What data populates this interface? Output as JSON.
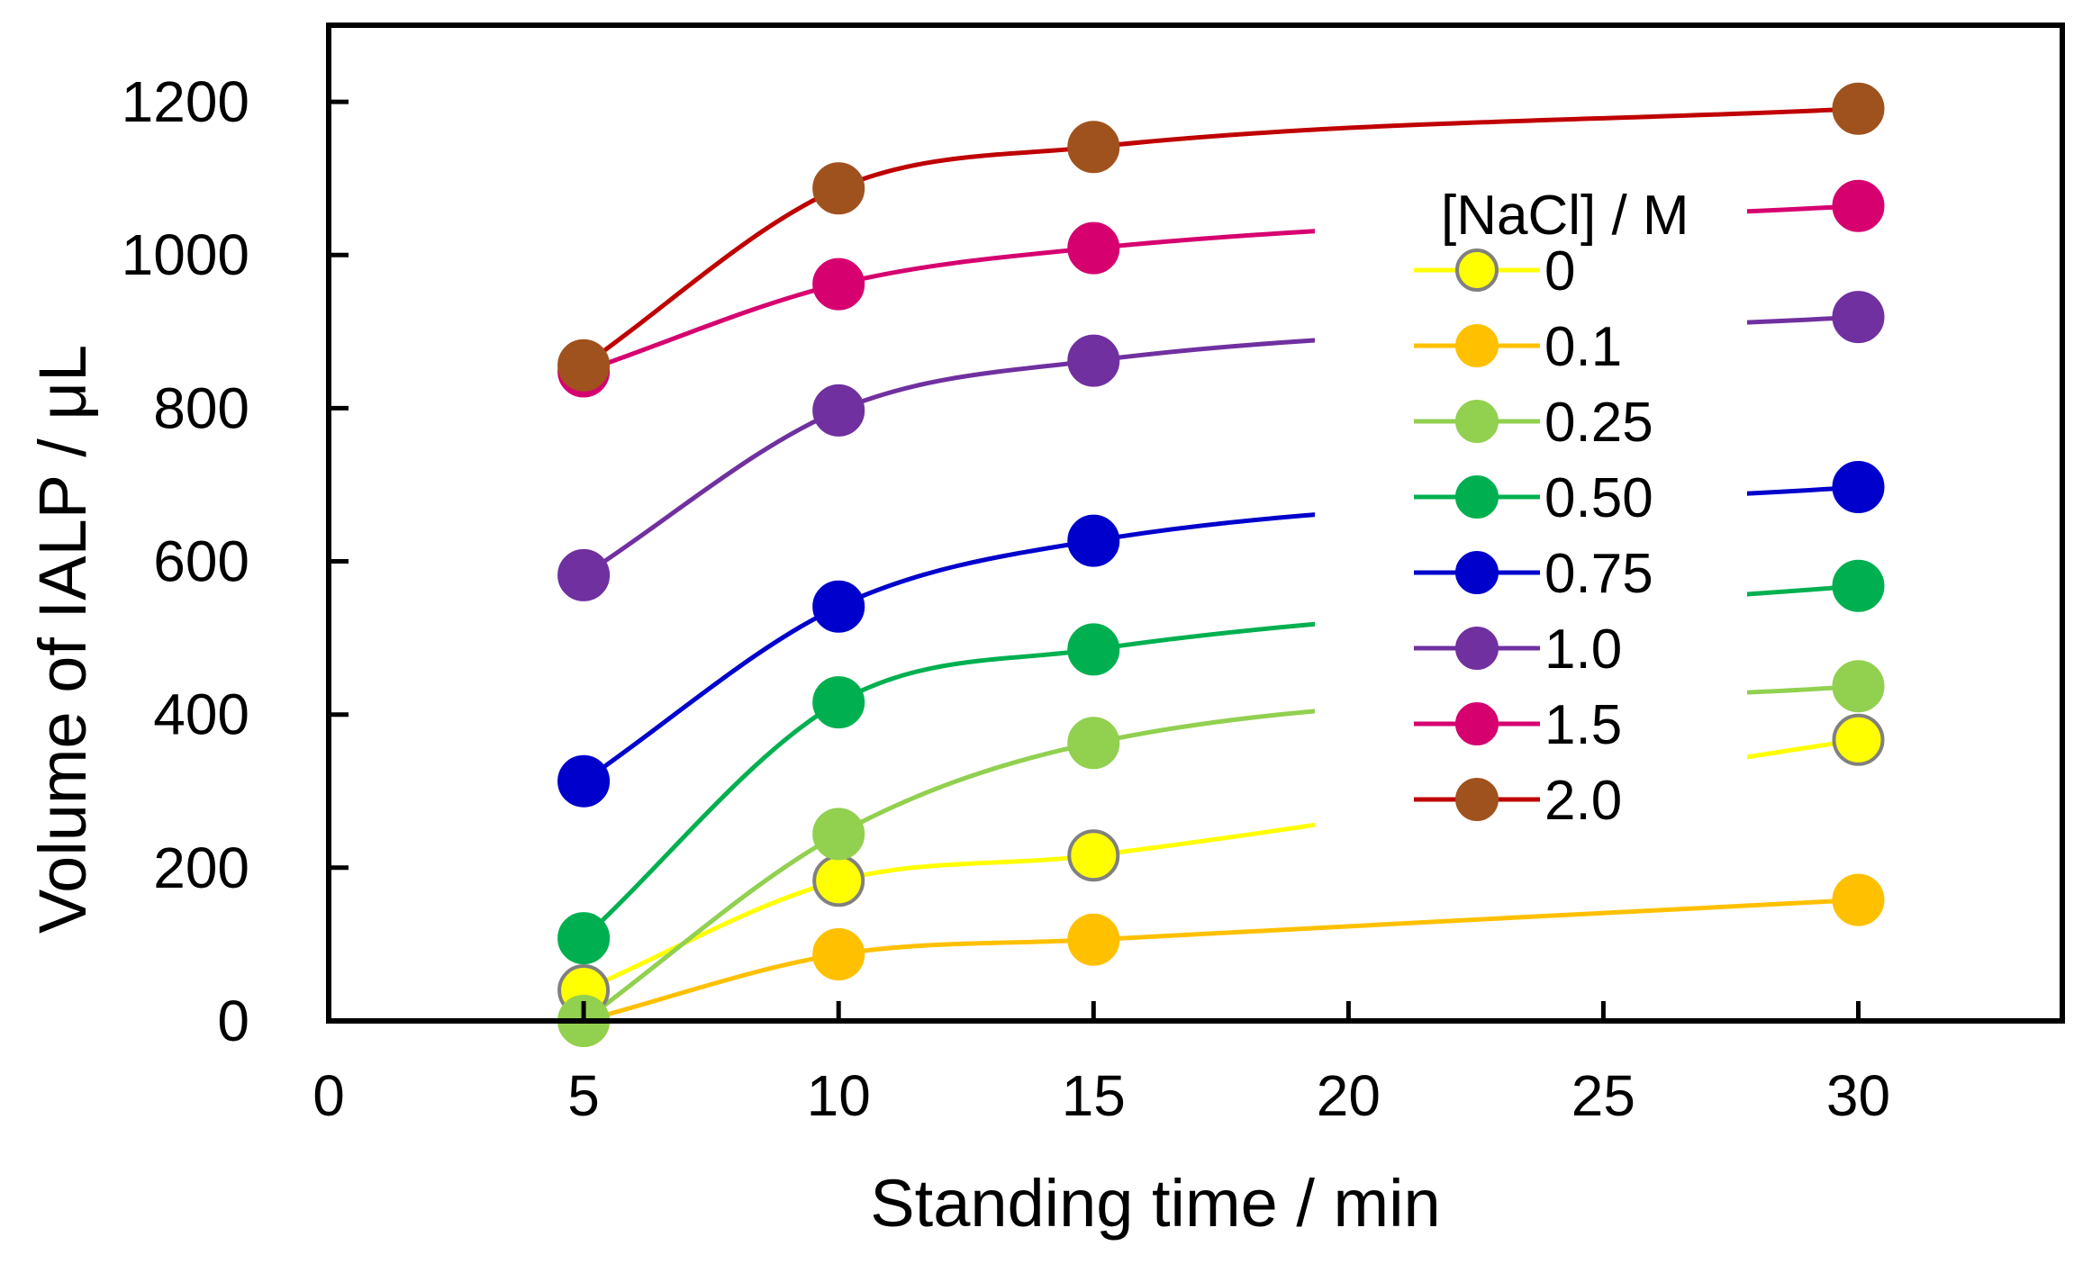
{
  "chart_data": {
    "type": "line",
    "title": "",
    "xlabel": "Standing time / min",
    "ylabel": "Volume of IALP / μL",
    "xlim": [
      0,
      34
    ],
    "ylim": [
      0,
      1300
    ],
    "xticks": [
      0,
      5,
      10,
      15,
      20,
      25,
      30
    ],
    "yticks": [
      0,
      200,
      400,
      600,
      800,
      1000,
      1200
    ],
    "x": [
      5,
      10,
      15,
      30
    ],
    "grid": false,
    "legend_position": "right",
    "legend_title": "[NaCl] / M",
    "series": [
      {
        "name": "0",
        "color": "#FFFF00",
        "line_color": "#FFFF00",
        "marker_edge": "#808080",
        "values": [
          40,
          183,
          216,
          367
        ]
      },
      {
        "name": "0.1",
        "color": "#FFC000",
        "line_color": "#FFC000",
        "marker_edge": "#FFC000",
        "values": [
          0,
          87,
          106,
          158
        ]
      },
      {
        "name": "0.25",
        "color": "#92D050",
        "line_color": "#92D050",
        "marker_edge": "#92D050",
        "values": [
          0,
          244,
          363,
          437
        ]
      },
      {
        "name": "0.50",
        "color": "#00B050",
        "line_color": "#00B050",
        "marker_edge": "#00B050",
        "values": [
          108,
          416,
          485,
          568
        ]
      },
      {
        "name": "0.75",
        "color": "#0000CC",
        "line_color": "#0000CC",
        "marker_edge": "#0000CC",
        "values": [
          313,
          541,
          627,
          697
        ]
      },
      {
        "name": "1.0",
        "color": "#7030A0",
        "line_color": "#7030A0",
        "marker_edge": "#7030A0",
        "values": [
          582,
          797,
          862,
          919
        ]
      },
      {
        "name": "1.5",
        "color": "#D6006F",
        "line_color": "#D6006F",
        "marker_edge": "#D6006F",
        "values": [
          848,
          962,
          1009,
          1064
        ]
      },
      {
        "name": "2.0",
        "color": "#A0521E",
        "line_color": "#C00000",
        "marker_edge": "#A0521E",
        "values": [
          856,
          1087,
          1141,
          1191
        ]
      }
    ]
  }
}
